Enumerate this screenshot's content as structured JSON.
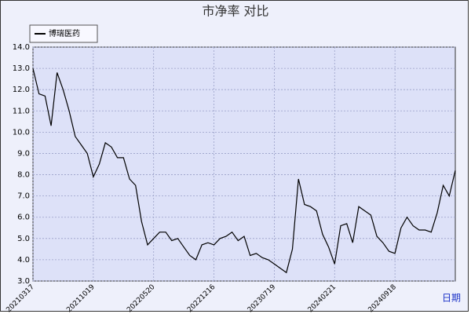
{
  "chart_data": {
    "type": "line",
    "title": "市净率  对比",
    "x_label": "日期",
    "categories": [
      "20210317",
      null,
      null,
      null,
      null,
      null,
      null,
      null,
      null,
      null,
      "20211019",
      null,
      null,
      null,
      null,
      null,
      null,
      null,
      null,
      null,
      "20220520",
      null,
      null,
      null,
      null,
      null,
      null,
      null,
      null,
      null,
      "20221216",
      null,
      null,
      null,
      null,
      null,
      null,
      null,
      null,
      null,
      "20230719",
      null,
      null,
      null,
      null,
      null,
      null,
      null,
      null,
      null,
      "20240221",
      null,
      null,
      null,
      null,
      null,
      null,
      null,
      null,
      null,
      "20240918",
      null,
      null,
      null,
      null,
      null,
      null,
      null,
      null,
      null,
      null
    ],
    "series": [
      {
        "name": "博瑞医药",
        "color": "#000000",
        "values": [
          13.0,
          11.8,
          11.7,
          10.3,
          12.8,
          12.0,
          11.0,
          9.8,
          9.4,
          9.0,
          7.9,
          8.5,
          9.5,
          9.3,
          8.8,
          8.8,
          7.8,
          7.5,
          5.8,
          4.7,
          5.0,
          5.3,
          5.3,
          4.9,
          5.0,
          4.6,
          4.2,
          4.0,
          4.7,
          4.8,
          4.7,
          5.0,
          5.1,
          5.3,
          4.9,
          5.1,
          4.2,
          4.3,
          4.1,
          4.0,
          3.8,
          3.6,
          3.4,
          4.5,
          7.8,
          6.6,
          6.5,
          6.3,
          5.2,
          4.6,
          3.8,
          5.6,
          5.7,
          4.8,
          6.5,
          6.3,
          6.1,
          5.1,
          4.8,
          4.4,
          4.3,
          5.5,
          6.0,
          5.6,
          5.4,
          5.4,
          5.3,
          6.2,
          7.5,
          7.0,
          8.2
        ]
      }
    ],
    "ylim": [
      3,
      14
    ],
    "yticks": [
      {
        "value": 3,
        "label": "3.0"
      },
      {
        "value": 4,
        "label": "4.0"
      },
      {
        "value": 5,
        "label": "5.0"
      },
      {
        "value": 6,
        "label": "6.0"
      },
      {
        "value": 7,
        "label": "7.0"
      },
      {
        "value": 8,
        "label": "8.0"
      },
      {
        "value": 9,
        "label": "9.0"
      },
      {
        "value": 10,
        "label": "10.0"
      },
      {
        "value": 11,
        "label": "11.0"
      },
      {
        "value": 12,
        "label": "12.0"
      },
      {
        "value": 13,
        "label": "13.0"
      },
      {
        "value": 14,
        "label": "14.0"
      }
    ],
    "grid": true
  }
}
